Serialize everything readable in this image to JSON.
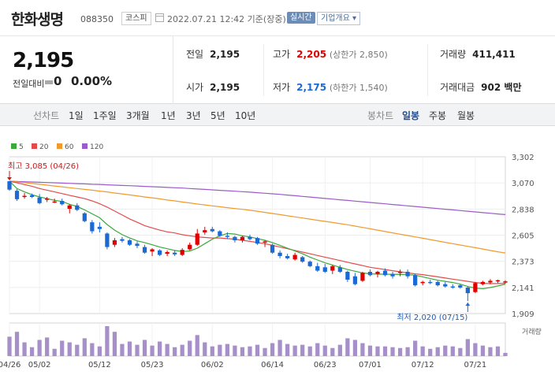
{
  "header": {
    "company_name": "한화생명",
    "stock_code": "088350",
    "market_badge": "코스피",
    "timestamp": "2022.07.21 12:42 기준(장중)",
    "realtime_label": "실시간",
    "company_info_label": "기업개요 ▾"
  },
  "quote": {
    "current_price": "2,195",
    "change_label": "전일대비",
    "change_value": "0",
    "change_percent": "0.00%",
    "prev_close_label": "전일",
    "prev_close": "2,195",
    "high_label": "고가",
    "high": "2,205",
    "upper_limit": "(상한가 2,850)",
    "volume_label": "거래량",
    "volume": "411,411",
    "open_label": "시가",
    "open": "2,195",
    "low_label": "저가",
    "low": "2,175",
    "lower_limit": "(하한가 1,540)",
    "amount_label": "거래대금",
    "amount": "902 백만"
  },
  "periods": {
    "line_chart_label": "선차트",
    "line_items": [
      "1일",
      "1주일",
      "3개월",
      "1년",
      "3년",
      "5년",
      "10년"
    ],
    "candle_chart_label": "봉차트",
    "candle_items": [
      "일봉",
      "주봉",
      "월봉"
    ],
    "active_candle": "일봉"
  },
  "colors": {
    "up": "#e10000",
    "down": "#1b6ad4",
    "ma5": "#3aa83a",
    "ma20": "#e34b4b",
    "ma60": "#f19a2c",
    "ma120": "#9b5bc8",
    "volume": "#a790c9"
  },
  "chart_data": {
    "type": "candlestick",
    "legend": [
      {
        "name": "5",
        "color": "#3aa83a"
      },
      {
        "name": "20",
        "color": "#e34b4b"
      },
      {
        "name": "60",
        "color": "#f19a2c"
      },
      {
        "name": "120",
        "color": "#9b5bc8"
      }
    ],
    "y_ticks": [
      "3,302",
      "3,070",
      "2,838",
      "2,605",
      "2,373",
      "2,141",
      "1,909"
    ],
    "ylim": [
      1909,
      3302
    ],
    "x_ticks": [
      "04/26",
      "05/02",
      "05/12",
      "05/23",
      "06/02",
      "06/14",
      "06/23",
      "07/01",
      "07/12",
      "07/21"
    ],
    "x_tick_index": [
      0,
      4,
      12,
      19,
      27,
      35,
      42,
      48,
      55,
      62
    ],
    "volume_label": "거래량",
    "annotations": {
      "high": "최고 3,085 (04/26)",
      "low": "최저 2,020 (07/15)"
    },
    "candles": [
      {
        "o": 3085,
        "h": 3085,
        "l": 3000,
        "c": 3010,
        "v": 240
      },
      {
        "o": 3000,
        "h": 3015,
        "l": 2910,
        "c": 2925,
        "v": 300
      },
      {
        "o": 2950,
        "h": 2980,
        "l": 2930,
        "c": 2955,
        "v": 170
      },
      {
        "o": 2960,
        "h": 2975,
        "l": 2935,
        "c": 2945,
        "v": 110
      },
      {
        "o": 2940,
        "h": 2970,
        "l": 2880,
        "c": 2890,
        "v": 200
      },
      {
        "o": 2920,
        "h": 2945,
        "l": 2900,
        "c": 2930,
        "v": 230
      },
      {
        "o": 2900,
        "h": 2930,
        "l": 2890,
        "c": 2905,
        "v": 90
      },
      {
        "o": 2910,
        "h": 2930,
        "l": 2870,
        "c": 2880,
        "v": 190
      },
      {
        "o": 2840,
        "h": 2880,
        "l": 2800,
        "c": 2870,
        "v": 170
      },
      {
        "o": 2870,
        "h": 2890,
        "l": 2820,
        "c": 2830,
        "v": 140
      },
      {
        "o": 2800,
        "h": 2810,
        "l": 2720,
        "c": 2730,
        "v": 220
      },
      {
        "o": 2720,
        "h": 2740,
        "l": 2620,
        "c": 2640,
        "v": 160
      },
      {
        "o": 2680,
        "h": 2720,
        "l": 2630,
        "c": 2660,
        "v": 120
      },
      {
        "o": 2620,
        "h": 2630,
        "l": 2480,
        "c": 2500,
        "v": 370
      },
      {
        "o": 2520,
        "h": 2580,
        "l": 2500,
        "c": 2560,
        "v": 300
      },
      {
        "o": 2570,
        "h": 2590,
        "l": 2540,
        "c": 2555,
        "v": 150
      },
      {
        "o": 2560,
        "h": 2570,
        "l": 2510,
        "c": 2520,
        "v": 180
      },
      {
        "o": 2530,
        "h": 2550,
        "l": 2490,
        "c": 2510,
        "v": 140
      },
      {
        "o": 2500,
        "h": 2520,
        "l": 2440,
        "c": 2450,
        "v": 200
      },
      {
        "o": 2460,
        "h": 2490,
        "l": 2420,
        "c": 2480,
        "v": 130
      },
      {
        "o": 2470,
        "h": 2480,
        "l": 2420,
        "c": 2430,
        "v": 180
      },
      {
        "o": 2440,
        "h": 2470,
        "l": 2420,
        "c": 2455,
        "v": 150
      },
      {
        "o": 2450,
        "h": 2470,
        "l": 2420,
        "c": 2435,
        "v": 110
      },
      {
        "o": 2430,
        "h": 2490,
        "l": 2420,
        "c": 2475,
        "v": 140
      },
      {
        "o": 2480,
        "h": 2540,
        "l": 2470,
        "c": 2520,
        "v": 190
      },
      {
        "o": 2520,
        "h": 2660,
        "l": 2510,
        "c": 2620,
        "v": 260
      },
      {
        "o": 2630,
        "h": 2680,
        "l": 2610,
        "c": 2650,
        "v": 170
      },
      {
        "o": 2660,
        "h": 2680,
        "l": 2630,
        "c": 2640,
        "v": 120
      },
      {
        "o": 2640,
        "h": 2650,
        "l": 2590,
        "c": 2600,
        "v": 140
      },
      {
        "o": 2600,
        "h": 2630,
        "l": 2570,
        "c": 2590,
        "v": 150
      },
      {
        "o": 2590,
        "h": 2600,
        "l": 2540,
        "c": 2560,
        "v": 130
      },
      {
        "o": 2560,
        "h": 2600,
        "l": 2540,
        "c": 2590,
        "v": 110
      },
      {
        "o": 2590,
        "h": 2610,
        "l": 2560,
        "c": 2570,
        "v": 120
      },
      {
        "o": 2580,
        "h": 2590,
        "l": 2520,
        "c": 2530,
        "v": 140
      },
      {
        "o": 2540,
        "h": 2560,
        "l": 2500,
        "c": 2550,
        "v": 100
      },
      {
        "o": 2520,
        "h": 2530,
        "l": 2440,
        "c": 2450,
        "v": 160
      },
      {
        "o": 2450,
        "h": 2470,
        "l": 2400,
        "c": 2420,
        "v": 200
      },
      {
        "o": 2420,
        "h": 2440,
        "l": 2390,
        "c": 2400,
        "v": 150
      },
      {
        "o": 2390,
        "h": 2450,
        "l": 2380,
        "c": 2430,
        "v": 130
      },
      {
        "o": 2410,
        "h": 2420,
        "l": 2360,
        "c": 2370,
        "v": 140
      },
      {
        "o": 2370,
        "h": 2380,
        "l": 2320,
        "c": 2330,
        "v": 120
      },
      {
        "o": 2330,
        "h": 2360,
        "l": 2280,
        "c": 2290,
        "v": 160
      },
      {
        "o": 2320,
        "h": 2350,
        "l": 2270,
        "c": 2280,
        "v": 130
      },
      {
        "o": 2290,
        "h": 2340,
        "l": 2260,
        "c": 2330,
        "v": 100
      },
      {
        "o": 2320,
        "h": 2340,
        "l": 2270,
        "c": 2280,
        "v": 140
      },
      {
        "o": 2280,
        "h": 2290,
        "l": 2190,
        "c": 2210,
        "v": 220
      },
      {
        "o": 2240,
        "h": 2270,
        "l": 2160,
        "c": 2170,
        "v": 200
      },
      {
        "o": 2200,
        "h": 2280,
        "l": 2190,
        "c": 2270,
        "v": 160
      },
      {
        "o": 2280,
        "h": 2300,
        "l": 2240,
        "c": 2250,
        "v": 130
      },
      {
        "o": 2260,
        "h": 2290,
        "l": 2230,
        "c": 2280,
        "v": 120
      },
      {
        "o": 2290,
        "h": 2310,
        "l": 2240,
        "c": 2250,
        "v": 120
      },
      {
        "o": 2260,
        "h": 2280,
        "l": 2220,
        "c": 2240,
        "v": 110
      },
      {
        "o": 2270,
        "h": 2300,
        "l": 2240,
        "c": 2280,
        "v": 100
      },
      {
        "o": 2280,
        "h": 2300,
        "l": 2220,
        "c": 2240,
        "v": 110
      },
      {
        "o": 2250,
        "h": 2260,
        "l": 2150,
        "c": 2160,
        "v": 190
      },
      {
        "o": 2180,
        "h": 2200,
        "l": 2160,
        "c": 2190,
        "v": 120
      },
      {
        "o": 2190,
        "h": 2210,
        "l": 2170,
        "c": 2185,
        "v": 90
      },
      {
        "o": 2190,
        "h": 2200,
        "l": 2150,
        "c": 2160,
        "v": 110
      },
      {
        "o": 2170,
        "h": 2190,
        "l": 2140,
        "c": 2150,
        "v": 130
      },
      {
        "o": 2150,
        "h": 2170,
        "l": 2130,
        "c": 2140,
        "v": 120
      },
      {
        "o": 2160,
        "h": 2170,
        "l": 2130,
        "c": 2140,
        "v": 100
      },
      {
        "o": 2140,
        "h": 2150,
        "l": 2020,
        "c": 2090,
        "v": 210
      },
      {
        "o": 2100,
        "h": 2190,
        "l": 2090,
        "c": 2180,
        "v": 160
      },
      {
        "o": 2170,
        "h": 2200,
        "l": 2160,
        "c": 2190,
        "v": 130
      },
      {
        "o": 2185,
        "h": 2215,
        "l": 2170,
        "c": 2200,
        "v": 110
      },
      {
        "o": 2195,
        "h": 2210,
        "l": 2180,
        "c": 2205,
        "v": 120
      },
      {
        "o": 2195,
        "h": 2205,
        "l": 2175,
        "c": 2195,
        "v": 40
      }
    ],
    "ma5": [
      3085,
      3020,
      2990,
      2965,
      2945,
      2930,
      2915,
      2905,
      2880,
      2860,
      2830,
      2795,
      2760,
      2700,
      2650,
      2610,
      2580,
      2555,
      2540,
      2520,
      2500,
      2485,
      2470,
      2460,
      2465,
      2490,
      2530,
      2570,
      2600,
      2620,
      2615,
      2600,
      2590,
      2575,
      2560,
      2540,
      2515,
      2490,
      2465,
      2440,
      2410,
      2385,
      2360,
      2340,
      2320,
      2300,
      2285,
      2270,
      2262,
      2260,
      2258,
      2258,
      2256,
      2255,
      2250,
      2235,
      2220,
      2205,
      2195,
      2185,
      2170,
      2150,
      2135,
      2130,
      2140,
      2155,
      2170
    ],
    "ma20": [
      3085,
      3070,
      3055,
      3040,
      3020,
      3005,
      2990,
      2975,
      2960,
      2945,
      2930,
      2910,
      2885,
      2855,
      2820,
      2785,
      2750,
      2720,
      2690,
      2670,
      2650,
      2635,
      2625,
      2610,
      2600,
      2590,
      2585,
      2580,
      2580,
      2575,
      2570,
      2560,
      2550,
      2540,
      2530,
      2515,
      2500,
      2485,
      2470,
      2455,
      2440,
      2425,
      2410,
      2395,
      2380,
      2365,
      2350,
      2335,
      2320,
      2310,
      2300,
      2290,
      2280,
      2270,
      2262,
      2255,
      2245,
      2235,
      2225,
      2215,
      2205,
      2195,
      2185,
      2178,
      2175,
      2176,
      2178
    ],
    "ma60": [
      3085,
      3078,
      3072,
      3065,
      3058,
      3050,
      3042,
      3035,
      3027,
      3020,
      3012,
      3005,
      2997,
      2990,
      2980,
      2972,
      2963,
      2955,
      2945,
      2937,
      2928,
      2918,
      2910,
      2900,
      2892,
      2882,
      2874,
      2866,
      2858,
      2850,
      2842,
      2835,
      2827,
      2818,
      2808,
      2798,
      2788,
      2778,
      2768,
      2758,
      2748,
      2738,
      2728,
      2718,
      2708,
      2698,
      2686,
      2674,
      2662,
      2650,
      2638,
      2626,
      2614,
      2602,
      2590,
      2578,
      2566,
      2554,
      2542,
      2530,
      2518,
      2506,
      2494,
      2482,
      2470,
      2458,
      2447
    ],
    "ma120": [
      3085,
      3082,
      3080,
      3078,
      3075,
      3073,
      3071,
      3068,
      3066,
      3063,
      3061,
      3058,
      3056,
      3053,
      3050,
      3047,
      3045,
      3042,
      3039,
      3036,
      3033,
      3030,
      3027,
      3024,
      3020,
      3016,
      3012,
      3008,
      3004,
      3000,
      2996,
      2992,
      2988,
      2983,
      2978,
      2973,
      2968,
      2962,
      2956,
      2950,
      2944,
      2938,
      2932,
      2926,
      2920,
      2914,
      2908,
      2902,
      2896,
      2890,
      2884,
      2878,
      2872,
      2866,
      2860,
      2854,
      2848,
      2842,
      2836,
      2830,
      2824,
      2818,
      2812,
      2806,
      2800,
      2794,
      2788
    ]
  }
}
